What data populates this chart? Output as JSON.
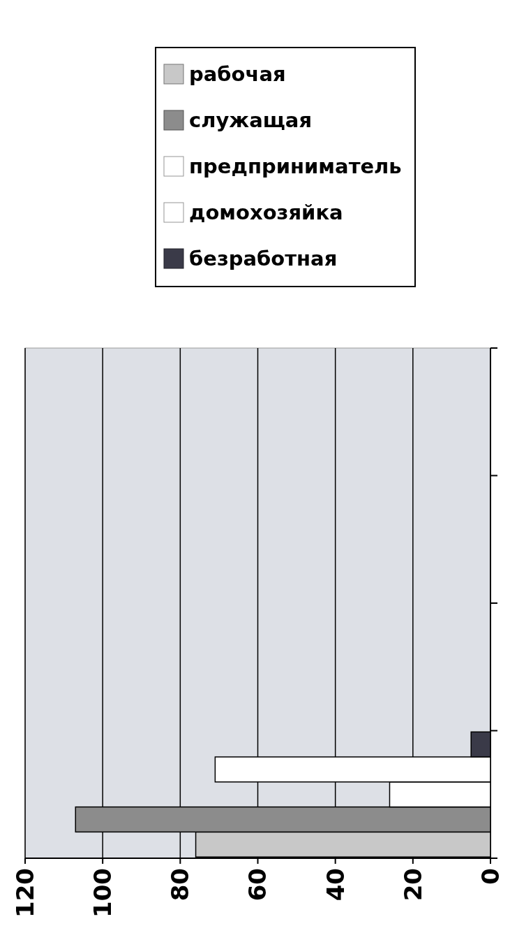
{
  "chart_data": {
    "type": "bar",
    "orientation": "horizontal",
    "categories": [
      null,
      null,
      null,
      null
    ],
    "series": [
      {
        "name": "рабочая",
        "color": "#c8c8c8",
        "values": [
          null,
          null,
          null,
          76
        ]
      },
      {
        "name": "служащая",
        "color": "#8c8c8c",
        "values": [
          null,
          null,
          null,
          107
        ]
      },
      {
        "name": "предприниматель",
        "color": "#ffffff",
        "values": [
          null,
          null,
          null,
          26
        ]
      },
      {
        "name": "домохозяйка",
        "color": "#ffffff",
        "values": [
          null,
          null,
          null,
          71
        ]
      },
      {
        "name": "безработная",
        "color": "#3a3a48",
        "values": [
          null,
          null,
          null,
          5
        ]
      }
    ],
    "xlim": [
      120,
      0
    ],
    "xticks": [
      120,
      100,
      80,
      60,
      40,
      20,
      0
    ],
    "grid": "x",
    "legend": "top"
  }
}
